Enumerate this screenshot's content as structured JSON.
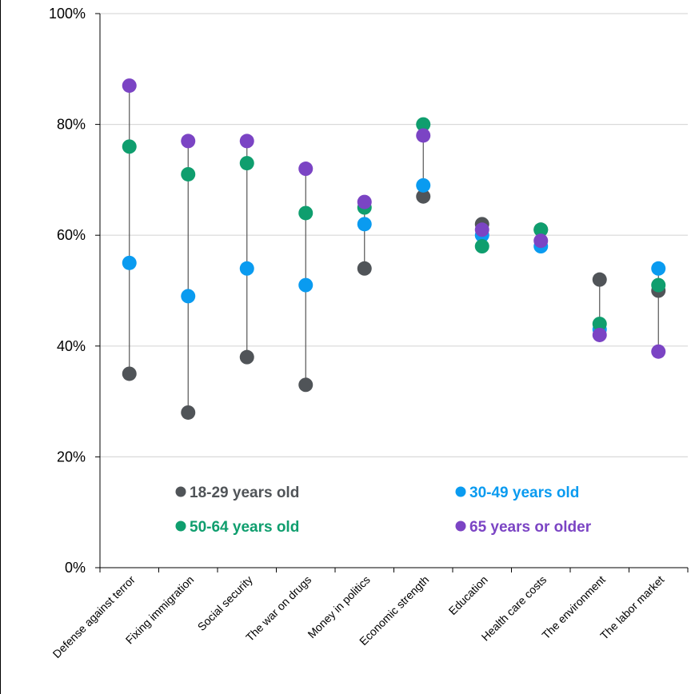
{
  "chart_data": {
    "type": "scatter",
    "subtype": "dot-plot",
    "title": "",
    "xlabel": "",
    "ylabel": "",
    "ylim": [
      0,
      100
    ],
    "yticks": [
      0,
      20,
      40,
      60,
      80,
      100
    ],
    "ytick_labels": [
      "0%",
      "20%",
      "40%",
      "60%",
      "80%",
      "100%"
    ],
    "grid": true,
    "legend_position": "bottom-inside",
    "categories": [
      "Defense against terror",
      "Fixing immigration",
      "Social security",
      "The war on drugs",
      "Money in politics",
      "Economic strength",
      "Education",
      "Health care costs",
      "The environment",
      "The labor market"
    ],
    "series": [
      {
        "name": "18-29 years old",
        "color": "#505458",
        "values": [
          35,
          28,
          38,
          33,
          54,
          67,
          62,
          61,
          52,
          50
        ]
      },
      {
        "name": "30-49 years old",
        "color": "#0a9bf0",
        "values": [
          55,
          49,
          54,
          51,
          62,
          69,
          60,
          58,
          43,
          54
        ]
      },
      {
        "name": "50-64 years old",
        "color": "#0f9e6e",
        "values": [
          76,
          71,
          73,
          64,
          65,
          80,
          58,
          61,
          44,
          51
        ]
      },
      {
        "name": "65 years or older",
        "color": "#7b44c4",
        "values": [
          87,
          77,
          77,
          72,
          66,
          78,
          61,
          59,
          42,
          39
        ]
      }
    ]
  }
}
